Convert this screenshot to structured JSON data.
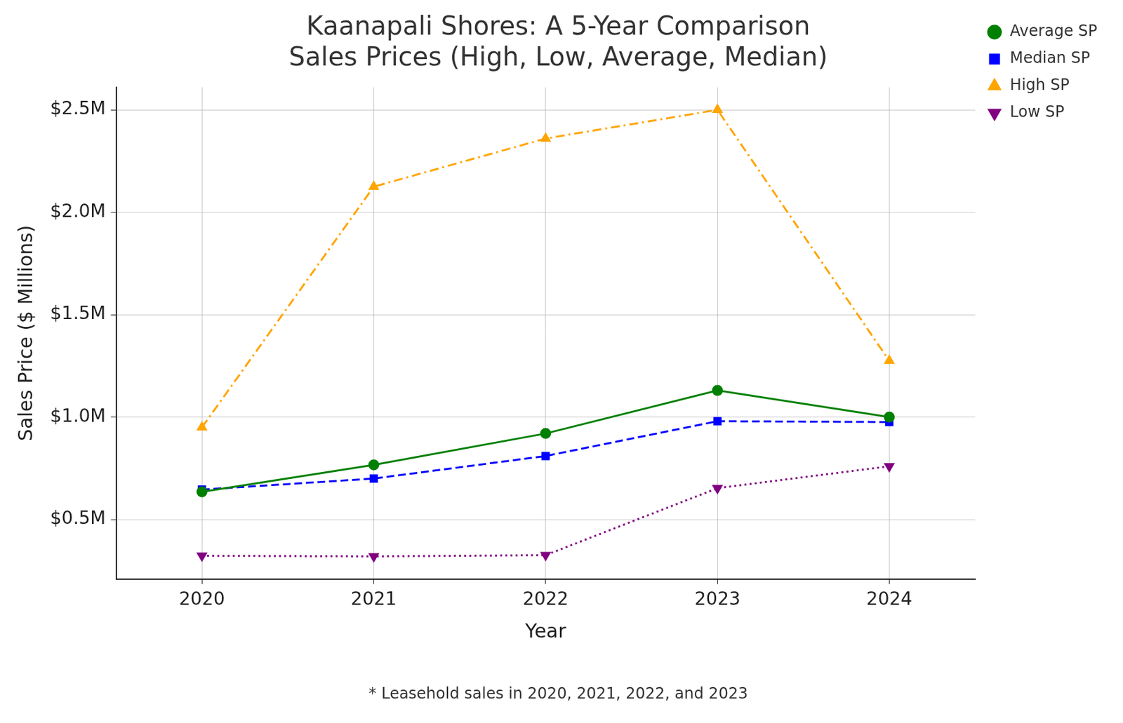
{
  "chart_data": {
    "type": "line",
    "title": "Kaanapali Shores: A 5-Year Comparison\nSales Prices (High, Low, Average, Median)",
    "x_label": "Year",
    "y_label": "Sales Price ($ Millions)",
    "footnote": "* Leasehold sales in 2020, 2021, 2022, and 2023",
    "categories": [
      "2020",
      "2021",
      "2022",
      "2023",
      "2024"
    ],
    "series": [
      {
        "name": "Average SP",
        "color": "#008000",
        "marker": "circle",
        "line_style": "solid",
        "values": [
          0.635,
          0.767,
          0.92,
          1.13,
          1.0
        ]
      },
      {
        "name": "Median SP",
        "color": "#0000ff",
        "marker": "square",
        "line_style": "dashed",
        "values": [
          0.646,
          0.7,
          0.81,
          0.98,
          0.976
        ]
      },
      {
        "name": "High SP",
        "color": "#ffa500",
        "marker": "triangle-up",
        "line_style": "dashdot",
        "values": [
          0.95,
          2.125,
          2.36,
          2.5,
          1.275
        ]
      },
      {
        "name": "Low SP",
        "color": "#800080",
        "marker": "triangle-down",
        "line_style": "dotted",
        "values": [
          0.323,
          0.32,
          0.326,
          0.653,
          0.76
        ]
      }
    ],
    "ylim": [
      0.21,
      2.61
    ],
    "yticks": [
      {
        "value": 0.5,
        "label": "$0.5M"
      },
      {
        "value": 1.0,
        "label": "$1.0M"
      },
      {
        "value": 1.5,
        "label": "$1.5M"
      },
      {
        "value": 2.0,
        "label": "$2.0M"
      },
      {
        "value": 2.5,
        "label": "$2.5M"
      }
    ],
    "grid": true,
    "legend": "upper right"
  }
}
